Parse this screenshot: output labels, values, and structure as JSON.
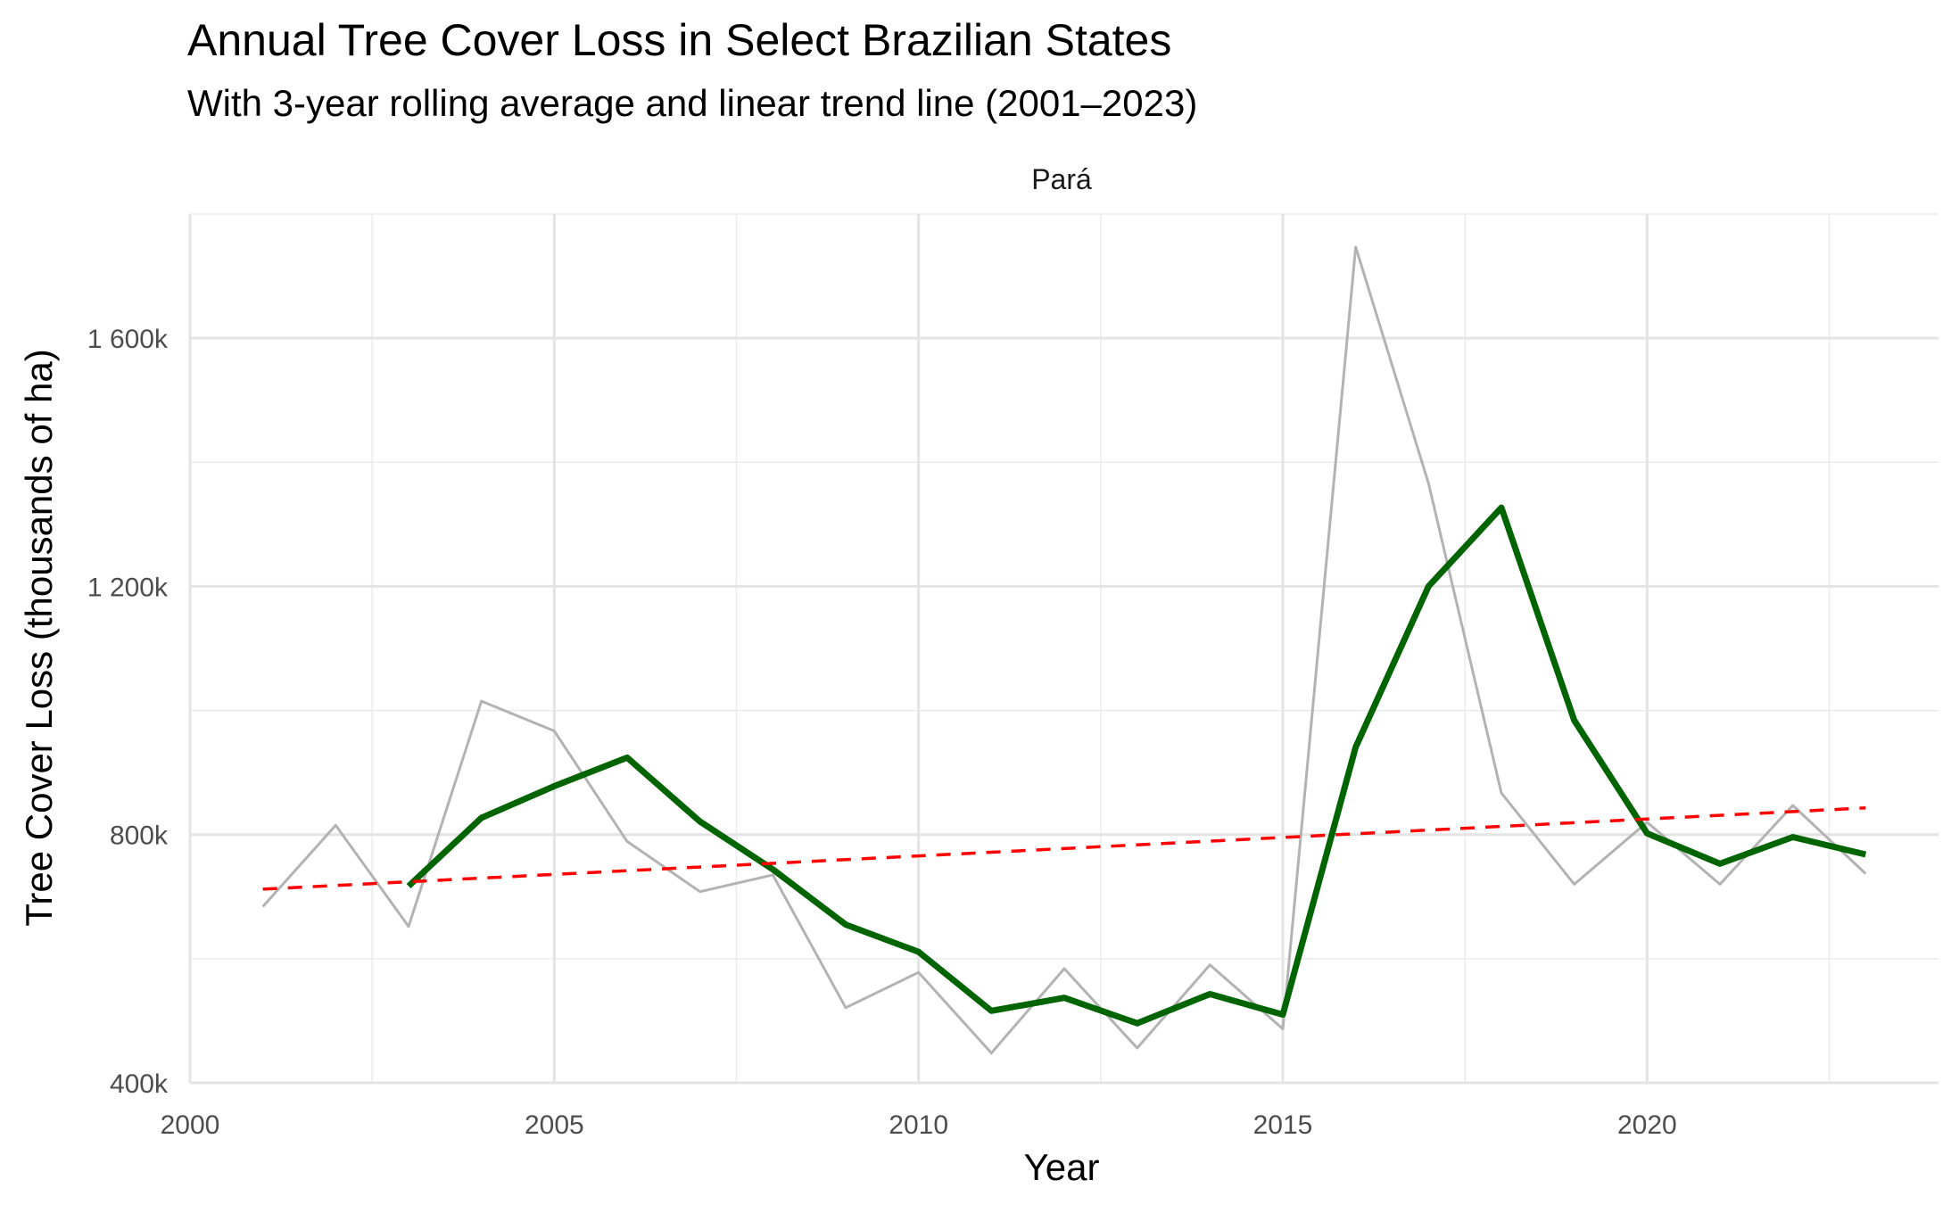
{
  "chart_data": {
    "type": "line",
    "title": "Annual Tree Cover Loss in Select Brazilian States",
    "subtitle": "With 3-year rolling average and linear trend line (2001–2023)",
    "facet_label": "Pará",
    "xlabel": "Year",
    "ylabel": "Tree Cover Loss (thousands of ha)",
    "xlim": [
      2000,
      2024
    ],
    "ylim": [
      400,
      1800
    ],
    "x_ticks": [
      2000,
      2005,
      2010,
      2015,
      2020
    ],
    "x_tick_labels": [
      "2000",
      "2005",
      "2010",
      "2015",
      "2020"
    ],
    "y_ticks": [
      400,
      800,
      1200,
      1600
    ],
    "y_tick_labels": [
      "400k",
      "800k",
      "1 200k",
      "1 600k"
    ],
    "grid": true,
    "legend": "none",
    "series": [
      {
        "role": "annual",
        "color": "#b3b3b3",
        "x": [
          2001,
          2002,
          2003,
          2004,
          2005,
          2006,
          2007,
          2008,
          2009,
          2010,
          2011,
          2012,
          2013,
          2014,
          2015,
          2016,
          2017,
          2018,
          2019,
          2020,
          2021,
          2022,
          2023
        ],
        "values": [
          684,
          815,
          652,
          1015,
          967,
          789,
          708,
          735,
          521,
          578,
          448,
          584,
          456,
          590,
          487,
          1747,
          1366,
          867,
          720,
          820,
          720,
          847,
          737
        ]
      },
      {
        "role": "rolling_average",
        "color": "#006400",
        "x": [
          2003,
          2004,
          2005,
          2006,
          2007,
          2008,
          2009,
          2010,
          2011,
          2012,
          2013,
          2014,
          2015,
          2016,
          2017,
          2018,
          2019,
          2020,
          2021,
          2022,
          2023
        ],
        "values": [
          717,
          827,
          878,
          924,
          821,
          744,
          655,
          611,
          516,
          537,
          496,
          543,
          510,
          941,
          1200,
          1327,
          984,
          802,
          753,
          796,
          768
        ]
      },
      {
        "role": "trend",
        "color": "#ff0000",
        "dashed": true,
        "x": [
          2001,
          2023
        ],
        "values": [
          712,
          843
        ]
      }
    ]
  }
}
